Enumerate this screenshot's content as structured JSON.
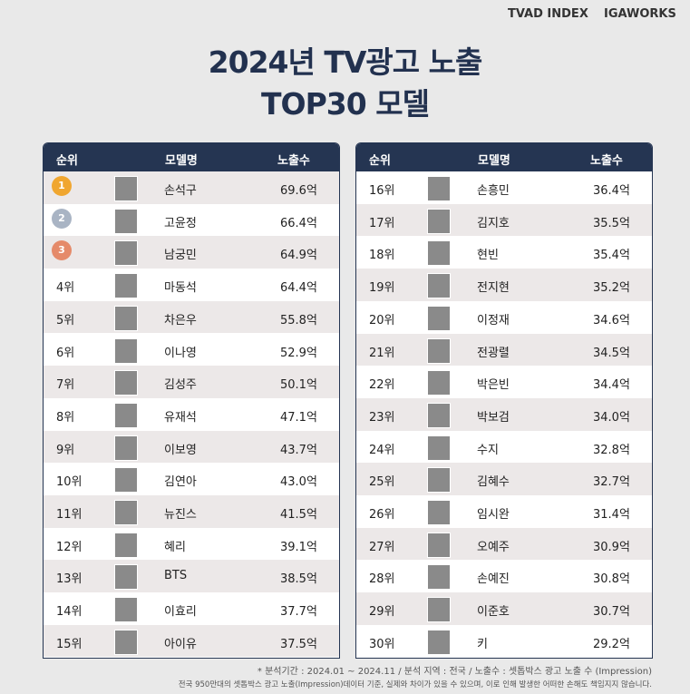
{
  "header": {
    "logos": [
      "TVAD INDEX",
      "IGAWORKS"
    ],
    "title": [
      "2024년 TV광고 노출",
      "TOP30 모델"
    ]
  },
  "tables": [
    {
      "columns": [
        "순위",
        "모델명",
        "노출수"
      ],
      "rows": [
        [
          "1",
          "손석구",
          "69.6억"
        ],
        [
          "2",
          "고윤정",
          "66.4억"
        ],
        [
          "3",
          "남궁민",
          "64.9억"
        ],
        [
          "4위",
          "마동석",
          "64.4억"
        ],
        [
          "5위",
          "차은우",
          "55.8억"
        ],
        [
          "6위",
          "이나영",
          "52.9억"
        ],
        [
          "7위",
          "김성주",
          "50.1억"
        ],
        [
          "8위",
          "유재석",
          "47.1억"
        ],
        [
          "9위",
          "이보영",
          "43.7억"
        ],
        [
          "10위",
          "김연아",
          "43.0억"
        ],
        [
          "11위",
          "뉴진스",
          "41.5억"
        ],
        [
          "12위",
          "혜리",
          "39.1억"
        ],
        [
          "13위",
          "BTS",
          "38.5억"
        ],
        [
          "14위",
          "이효리",
          "37.7억"
        ],
        [
          "15위",
          "아이유",
          "37.5억"
        ]
      ]
    },
    {
      "columns": [
        "순위",
        "모델명",
        "노출수"
      ],
      "rows": [
        [
          "16위",
          "손흥민",
          "36.4억"
        ],
        [
          "17위",
          "김지호",
          "35.5억"
        ],
        [
          "18위",
          "현빈",
          "35.4억"
        ],
        [
          "19위",
          "전지현",
          "35.2억"
        ],
        [
          "20위",
          "이정재",
          "34.6억"
        ],
        [
          "21위",
          "전광렬",
          "34.5억"
        ],
        [
          "22위",
          "박은빈",
          "34.4억"
        ],
        [
          "23위",
          "박보검",
          "34.0억"
        ],
        [
          "24위",
          "수지",
          "32.8억"
        ],
        [
          "25위",
          "김혜수",
          "32.7억"
        ],
        [
          "26위",
          "임시완",
          "31.4억"
        ],
        [
          "27위",
          "오예주",
          "30.9억"
        ],
        [
          "28위",
          "손예진",
          "30.8억"
        ],
        [
          "29위",
          "이준호",
          "30.7억"
        ],
        [
          "30위",
          "키",
          "29.2억"
        ]
      ]
    }
  ],
  "footnotes": [
    "* 분석기간 : 2024.01 ~ 2024.11 / 분석 지역 : 전국 / 노출수 : 셋톱박스 광고 노출 수 (Impression)",
    "전국 950만대의 셋톱박스 광고 노출(Impression)데이터 기준, 실제와 차이가 있을 수 있으며, 이로 인해 발생한 어떠한 손해도 책임지지 않습니다."
  ]
}
